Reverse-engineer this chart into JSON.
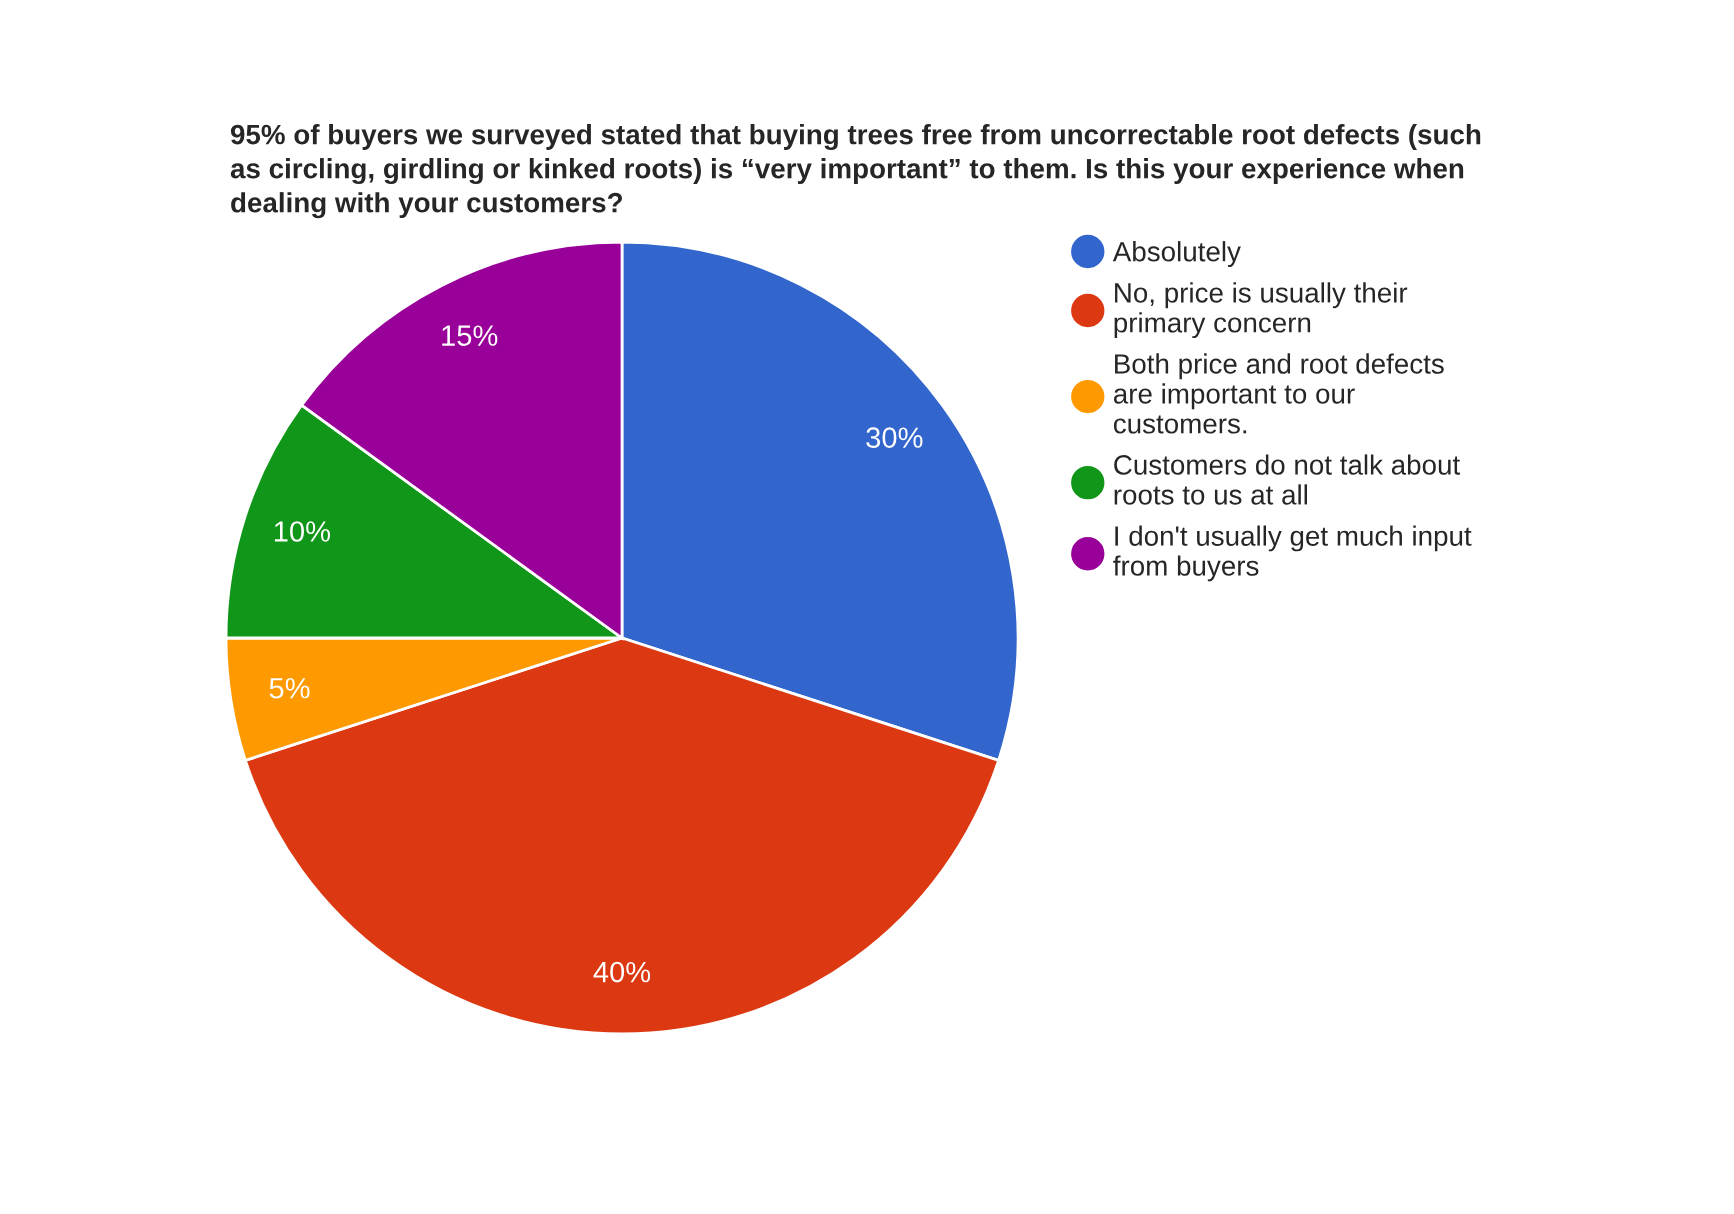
{
  "chart_data": {
    "type": "pie",
    "title": "95% of buyers we surveyed stated that buying trees free from uncorrectable root defects (such as circling, girdling or kinked roots) is “very important” to them. Is this your experience when dealing with your customers?",
    "categories": [
      "Absolutely",
      "No, price is usually their primary concern",
      "Both price and root defects are important to our customers.",
      "Customers do not talk about roots to us at all",
      "I don't usually get much input from buyers"
    ],
    "values": [
      30,
      40,
      5,
      10,
      15
    ],
    "colors": [
      "#3366cc",
      "#dc3912",
      "#ff9900",
      "#109618",
      "#990099"
    ],
    "value_labels": [
      "30%",
      "40%",
      "5%",
      "10%",
      "15%"
    ],
    "legend": "right"
  }
}
